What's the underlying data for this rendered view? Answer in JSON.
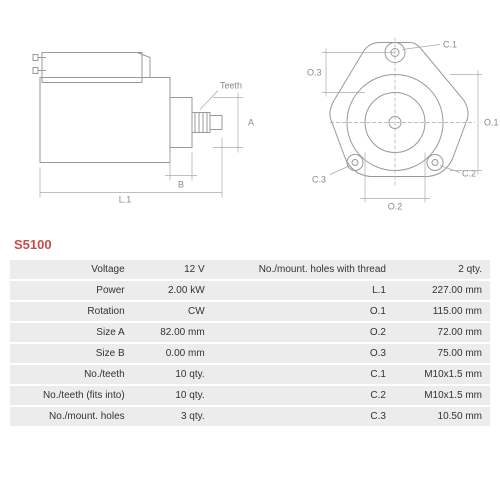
{
  "part_number": "S5100",
  "part_number_color": "#c94b4b",
  "diagram": {
    "outline_color": "#999999",
    "dim_color": "#aaaaaa",
    "text_color": "#888888",
    "side_labels": {
      "L1": "L.1",
      "B": "B",
      "A": "A",
      "Teeth": "Teeth"
    },
    "front_labels": {
      "O1": "O.1",
      "O2": "O.2",
      "O3": "O.3",
      "C1": "C.1",
      "C2": "C.2",
      "C3": "C.3"
    }
  },
  "specs_left": [
    {
      "label": "Voltage",
      "value": "12 V"
    },
    {
      "label": "Power",
      "value": "2.00 kW"
    },
    {
      "label": "Rotation",
      "value": "CW"
    },
    {
      "label": "Size A",
      "value": "82.00 mm"
    },
    {
      "label": "Size B",
      "value": "0.00 mm"
    },
    {
      "label": "No./teeth",
      "value": "10 qty."
    },
    {
      "label": "No./teeth (fits into)",
      "value": "10 qty."
    },
    {
      "label": "No./mount. holes",
      "value": "3 qty."
    }
  ],
  "specs_right": [
    {
      "label": "No./mount. holes with thread",
      "value": "2 qty."
    },
    {
      "label": "L.1",
      "value": "227.00 mm"
    },
    {
      "label": "O.1",
      "value": "115.00 mm"
    },
    {
      "label": "O.2",
      "value": "72.00 mm"
    },
    {
      "label": "O.3",
      "value": "75.00 mm"
    },
    {
      "label": "C.1",
      "value": "M10x1.5 mm"
    },
    {
      "label": "C.2",
      "value": "M10x1.5 mm"
    },
    {
      "label": "C.3",
      "value": "10.50 mm"
    }
  ]
}
